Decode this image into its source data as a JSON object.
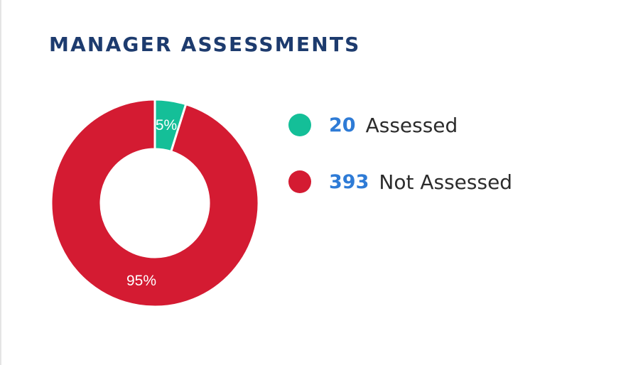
{
  "title": "MANAGER ASSESSMENTS",
  "colors": {
    "title": "#1d3b6e",
    "count": "#2e7bd6",
    "assessed": "#14bf98",
    "not_assessed": "#d41b32"
  },
  "legend": [
    {
      "count": "20",
      "label": "Assessed"
    },
    {
      "count": "393",
      "label": "Not Assessed"
    }
  ],
  "chart_data": {
    "type": "pie",
    "donut": true,
    "categories": [
      "Assessed",
      "Not Assessed"
    ],
    "values": [
      20,
      393
    ],
    "percent_labels": [
      "5%",
      "95%"
    ],
    "colors": [
      "#14bf98",
      "#d41b32"
    ],
    "legend_position": "right"
  }
}
